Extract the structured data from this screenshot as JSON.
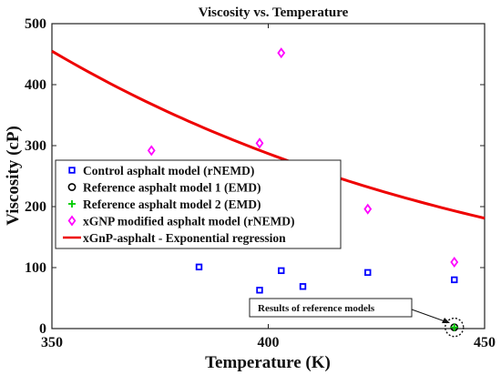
{
  "chart_data": {
    "type": "scatter",
    "title": "Viscosity vs. Temperature",
    "xlabel": "Temperature (K)",
    "ylabel": "Viscosity (cP)",
    "xlim": [
      350,
      450
    ],
    "ylim": [
      0,
      500
    ],
    "xticks": [
      "350",
      "400",
      "450"
    ],
    "yticks": [
      "0",
      "100",
      "200",
      "300",
      "400",
      "500"
    ],
    "grid": false,
    "legend_position": "center-left",
    "series": [
      {
        "name": "Control asphalt model (rNEMD)",
        "marker": "square",
        "color": "#0000ff",
        "points": [
          [
            384,
            101
          ],
          [
            398,
            63
          ],
          [
            403,
            95
          ],
          [
            408,
            69
          ],
          [
            423,
            92
          ],
          [
            443,
            80
          ]
        ]
      },
      {
        "name": "Reference asphalt model 1 (EMD)",
        "marker": "circle",
        "color": "#000000",
        "points": [
          [
            443,
            2
          ]
        ]
      },
      {
        "name": "Reference asphalt model 2 (EMD)",
        "marker": "plus",
        "color": "#00cc00",
        "points": [
          [
            443,
            2
          ]
        ]
      },
      {
        "name": "xGNP modified asphalt model (rNEMD)",
        "marker": "diamond",
        "color": "#ff00ff",
        "points": [
          [
            373,
            292
          ],
          [
            398,
            304
          ],
          [
            403,
            452
          ],
          [
            423,
            196
          ],
          [
            443,
            109
          ]
        ]
      },
      {
        "name": "xGnP-asphalt - Exponential regression",
        "marker": "line",
        "color": "#ee0000",
        "curve": {
          "form": "exponential",
          "x0": 350,
          "y0": 455,
          "x1": 450,
          "y1": 181
        }
      }
    ],
    "annotation": "Results of reference models"
  }
}
